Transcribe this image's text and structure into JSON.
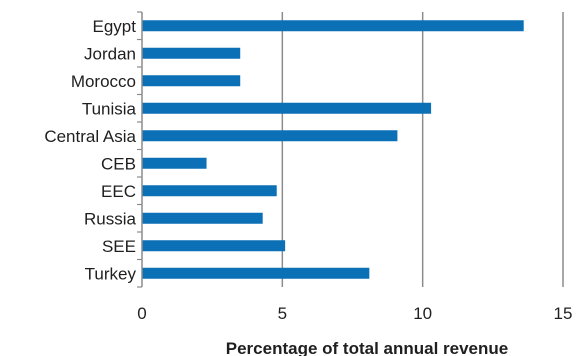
{
  "chart_data": {
    "type": "bar",
    "orientation": "horizontal",
    "categories": [
      "Egypt",
      "Jordan",
      "Morocco",
      "Tunisia",
      "Central Asia",
      "CEB",
      "EEC",
      "Russia",
      "SEE",
      "Turkey"
    ],
    "values": [
      13.6,
      3.5,
      3.5,
      10.3,
      9.1,
      2.3,
      4.8,
      4.3,
      5.1,
      8.1
    ],
    "xlabel": "Percentage of total annual revenue",
    "ylabel": "",
    "xlim": [
      0,
      15
    ],
    "xticks": [
      0,
      5,
      10,
      15
    ],
    "grid": "vertical",
    "legend": "none",
    "colors": {
      "bar": "#0b70b5",
      "grid": "#8c8c8c",
      "axis": "#8c8c8c"
    }
  }
}
